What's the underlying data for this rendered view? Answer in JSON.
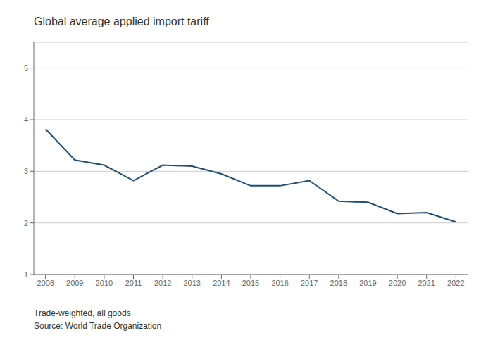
{
  "chart_data": {
    "type": "line",
    "title": "Global average applied import tariff",
    "subtitle": "Trade-weighted, all goods",
    "annotations": [
      "Source: World Trade Organization"
    ],
    "x": [
      2008,
      2009,
      2010,
      2011,
      2012,
      2013,
      2014,
      2015,
      2016,
      2017,
      2018,
      2019,
      2020,
      2021,
      2022
    ],
    "values": [
      3.82,
      3.22,
      3.12,
      2.82,
      3.12,
      3.1,
      2.95,
      2.72,
      2.72,
      2.82,
      2.42,
      2.4,
      2.18,
      2.2,
      2.02
    ],
    "color": "#1f4e79",
    "xlim": [
      2007.6,
      2022.4
    ],
    "xticks": [
      2008,
      2009,
      2010,
      2011,
      2012,
      2013,
      2014,
      2015,
      2016,
      2017,
      2018,
      2019,
      2020,
      2021,
      2022
    ],
    "ylim": [
      1,
      5.5
    ],
    "yticks": [
      1,
      2,
      3,
      4,
      5
    ],
    "grid": "y"
  }
}
